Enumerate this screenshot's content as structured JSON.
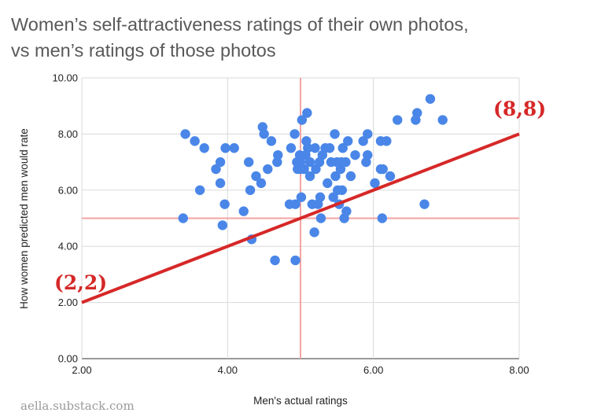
{
  "chart_data": {
    "type": "scatter",
    "title_lines": [
      "Women’s self-attractiveness ratings of their own photos,",
      "vs men’s ratings of those photos"
    ],
    "xlabel": "Men's actual ratings",
    "ylabel": "How women predicted men would rate",
    "xlim": [
      2,
      8
    ],
    "ylim": [
      0,
      10
    ],
    "x_ticks": [
      2,
      4,
      6,
      8
    ],
    "y_ticks": [
      0,
      2,
      4,
      6,
      8,
      10
    ],
    "x_tick_labels": [
      "2.00",
      "4.00",
      "6.00",
      "8.00"
    ],
    "y_tick_labels": [
      "0.00",
      "2.00",
      "4.00",
      "6.00",
      "8.00",
      "10.00"
    ],
    "grid": true,
    "reference_lines": {
      "x": 5,
      "y": 5,
      "color": "#f4a3a3"
    },
    "identity_line": {
      "from": [
        2,
        2
      ],
      "to": [
        8,
        8
      ],
      "color": "#d62828"
    },
    "annotations": [
      {
        "text": "(2,2)",
        "at": [
          2,
          2
        ]
      },
      {
        "text": "(8,8)",
        "at": [
          8,
          8
        ]
      }
    ],
    "credit": "aella.substack.com",
    "point_color": "#4a86e8",
    "points": [
      [
        3.39,
        5.0
      ],
      [
        3.42,
        8.0
      ],
      [
        3.55,
        7.75
      ],
      [
        3.62,
        6.0
      ],
      [
        3.68,
        7.5
      ],
      [
        3.84,
        6.75
      ],
      [
        3.9,
        7.0
      ],
      [
        3.9,
        6.25
      ],
      [
        3.93,
        4.75
      ],
      [
        3.96,
        5.5
      ],
      [
        3.97,
        7.5
      ],
      [
        4.09,
        7.5
      ],
      [
        4.22,
        5.25
      ],
      [
        4.29,
        7.0
      ],
      [
        4.31,
        6.0
      ],
      [
        4.33,
        4.25
      ],
      [
        4.39,
        6.5
      ],
      [
        4.46,
        6.25
      ],
      [
        4.48,
        8.25
      ],
      [
        4.5,
        8.0
      ],
      [
        4.55,
        6.75
      ],
      [
        4.6,
        7.75
      ],
      [
        4.65,
        3.5
      ],
      [
        4.68,
        7.0
      ],
      [
        4.69,
        7.25
      ],
      [
        4.85,
        5.5
      ],
      [
        4.87,
        7.5
      ],
      [
        4.92,
        8.0
      ],
      [
        4.93,
        5.5
      ],
      [
        4.93,
        3.5
      ],
      [
        4.95,
        7.0
      ],
      [
        4.96,
        6.75
      ],
      [
        4.99,
        7.25
      ],
      [
        5.0,
        7.0
      ],
      [
        5.0,
        6.75
      ],
      [
        5.01,
        5.75
      ],
      [
        5.02,
        8.5
      ],
      [
        5.05,
        6.75
      ],
      [
        5.07,
        7.25
      ],
      [
        5.08,
        7.75
      ],
      [
        5.09,
        8.75
      ],
      [
        5.1,
        7.5
      ],
      [
        5.13,
        7.0
      ],
      [
        5.13,
        6.5
      ],
      [
        5.16,
        5.5
      ],
      [
        5.19,
        4.5
      ],
      [
        5.2,
        7.5
      ],
      [
        5.21,
        6.75
      ],
      [
        5.24,
        5.5
      ],
      [
        5.26,
        7.0
      ],
      [
        5.27,
        5.75
      ],
      [
        5.28,
        5.0
      ],
      [
        5.3,
        7.25
      ],
      [
        5.34,
        7.5
      ],
      [
        5.37,
        6.25
      ],
      [
        5.4,
        7.5
      ],
      [
        5.42,
        7.0
      ],
      [
        5.45,
        5.75
      ],
      [
        5.47,
        8.0
      ],
      [
        5.48,
        6.5
      ],
      [
        5.5,
        7.0
      ],
      [
        5.51,
        6.0
      ],
      [
        5.53,
        5.5
      ],
      [
        5.55,
        6.75
      ],
      [
        5.56,
        7.0
      ],
      [
        5.57,
        6.0
      ],
      [
        5.58,
        7.5
      ],
      [
        5.6,
        5.0
      ],
      [
        5.62,
        7.0
      ],
      [
        5.63,
        5.25
      ],
      [
        5.65,
        7.75
      ],
      [
        5.69,
        6.5
      ],
      [
        5.75,
        7.25
      ],
      [
        5.86,
        7.75
      ],
      [
        5.9,
        7.0
      ],
      [
        5.92,
        8.0
      ],
      [
        5.92,
        7.25
      ],
      [
        6.02,
        6.25
      ],
      [
        6.1,
        7.75
      ],
      [
        6.1,
        6.75
      ],
      [
        6.12,
        5.0
      ],
      [
        6.13,
        6.75
      ],
      [
        6.18,
        7.75
      ],
      [
        6.23,
        6.5
      ],
      [
        6.33,
        8.5
      ],
      [
        6.58,
        8.5
      ],
      [
        6.6,
        8.75
      ],
      [
        6.7,
        5.5
      ],
      [
        6.78,
        9.25
      ],
      [
        6.95,
        8.5
      ]
    ]
  }
}
